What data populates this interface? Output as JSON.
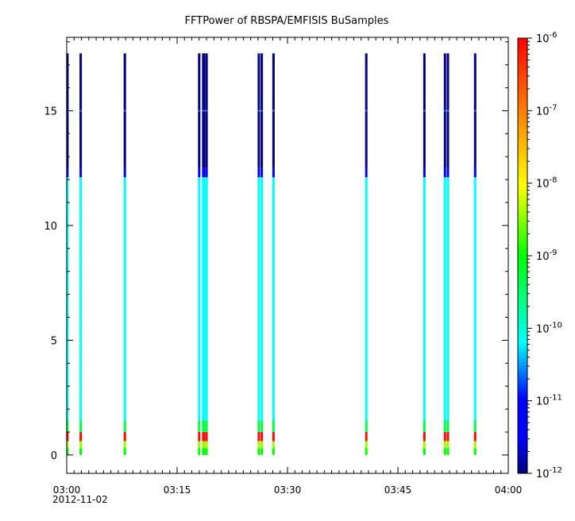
{
  "chart_data": {
    "type": "heatmap",
    "title": "FFTPower of RBSPA/EMFISIS  BuSamples",
    "xlabel": "",
    "ylabel": "",
    "x_start": "03:00",
    "x_end": "04:00",
    "xlim_minutes": [
      0,
      60
    ],
    "x_ticks": [
      {
        "minute": 0,
        "label": "03:00"
      },
      {
        "minute": 15,
        "label": "03:15"
      },
      {
        "minute": 30,
        "label": "03:30"
      },
      {
        "minute": 45,
        "label": "03:45"
      },
      {
        "minute": 60,
        "label": "04:00"
      }
    ],
    "date_label": "2012-11-02",
    "ylim": [
      -0.8,
      18.2
    ],
    "y_ticks": [
      0,
      5,
      10,
      15
    ],
    "colorbar": {
      "scale": "log",
      "range": [
        1e-12,
        1e-06
      ],
      "tick_exponents": [
        -12,
        -11,
        -10,
        -9,
        -8,
        -7,
        -6
      ],
      "tick_base": "10",
      "colors": [
        "#000080",
        "#0000ff",
        "#00ffff",
        "#00ff00",
        "#ffff00",
        "#ff8000",
        "#ff0000"
      ]
    },
    "bursts_minutes": [
      0.1,
      1.9,
      7.9,
      18.0,
      18.6,
      19.0,
      26.1,
      26.5,
      28.1,
      40.7,
      48.6,
      51.4,
      51.8,
      55.5
    ],
    "wide_bursts": [
      18.7,
      26.3,
      51.6
    ],
    "band_structure": [
      {
        "y_from": 12.5,
        "y_to": 17.5,
        "level_exp": -12
      },
      {
        "y_from": 12.1,
        "y_to": 12.5,
        "level_exp": -11
      },
      {
        "y_from": 1.5,
        "y_to": 12.1,
        "level_exp": -10.2
      },
      {
        "y_from": 1.0,
        "y_to": 1.5,
        "level_exp": -9.3
      },
      {
        "y_from": 0.6,
        "y_to": 1.0,
        "level_exp": -6.1
      },
      {
        "y_from": 0.3,
        "y_to": 0.6,
        "level_exp": -8.4
      },
      {
        "y_from": 0.0,
        "y_to": 0.3,
        "level_exp": -9.0
      }
    ]
  }
}
